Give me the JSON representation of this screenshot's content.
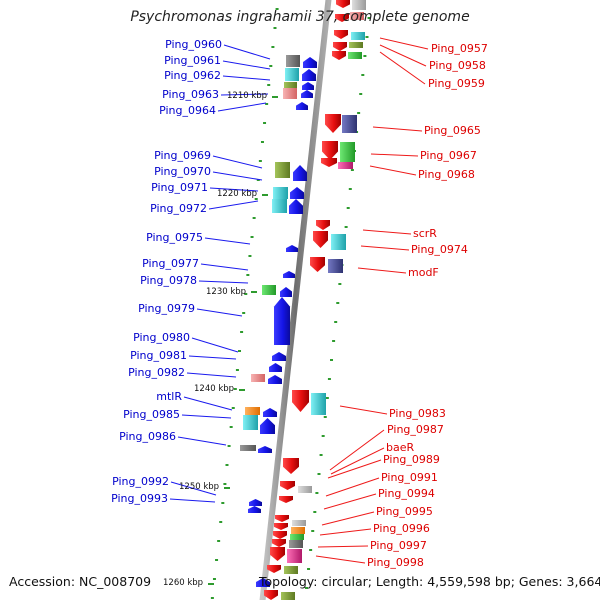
{
  "title": "Psychromonas ingrahamii 37, complete genome",
  "accession": "Accession: NC_008709",
  "topology": "Topology: circular; Length: 4,559,598 bp; Genes: 3,664",
  "colors": {
    "backbone": "#8c8c8c",
    "tick": "#2e9b2e",
    "label_left": "#0000cc",
    "label_right": "#dd0000",
    "forward": "#1414e6",
    "reverse": "#e60f0f",
    "swatch_olive": "#7f9f3a",
    "swatch_cyan": "#35c7cf",
    "swatch_pink": "#e98a8a",
    "swatch_green": "#36c23c",
    "swatch_slate": "#4a4f99",
    "swatch_orange": "#ff8c1a",
    "swatch_gray": "#777777",
    "swatch_lightgray": "#bbbbbb",
    "swatch_magenta": "#e0308a"
  },
  "scale_labels": [
    "1210 kbp",
    "1220 kbp",
    "1230 kbp",
    "1240 kbp",
    "1250 kbp",
    "1260 kbp"
  ],
  "genes_left": [
    "Ping_0960",
    "Ping_0961",
    "Ping_0962",
    "Ping_0963",
    "Ping_0964",
    "Ping_0969",
    "Ping_0970",
    "Ping_0971",
    "Ping_0972",
    "Ping_0975",
    "Ping_0977",
    "Ping_0978",
    "Ping_0979",
    "Ping_0980",
    "Ping_0981",
    "Ping_0982",
    "mtlR",
    "Ping_0985",
    "Ping_0986",
    "Ping_0992",
    "Ping_0993"
  ],
  "genes_right": [
    "Ping_0957",
    "Ping_0958",
    "Ping_0959",
    "Ping_0965",
    "Ping_0967",
    "Ping_0968",
    "scrR",
    "Ping_0974",
    "modF",
    "Ping_0983",
    "Ping_0987",
    "baeR",
    "Ping_0989",
    "Ping_0991",
    "Ping_0994",
    "Ping_0995",
    "Ping_0996",
    "Ping_0997",
    "Ping_0998"
  ]
}
